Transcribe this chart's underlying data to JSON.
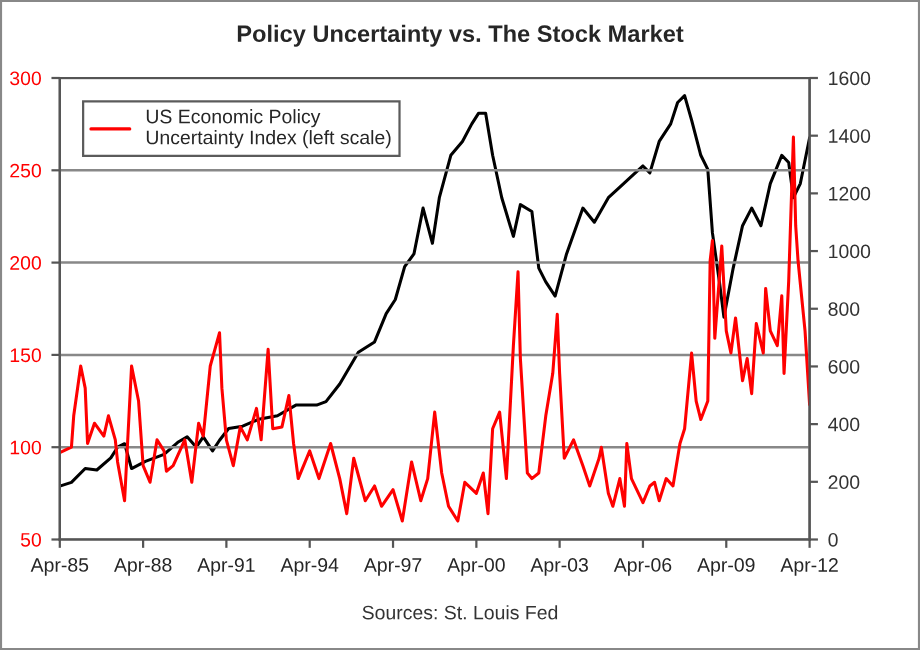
{
  "chart_data": {
    "type": "line",
    "title": "Policy Uncertainty vs. The Stock Market",
    "annotations": [
      "Sources: St. Louis Fed"
    ],
    "xlim": [
      "1985-04",
      "2012-04"
    ],
    "xticks": [
      {
        "value": "1985-04",
        "label": "Apr-85"
      },
      {
        "value": "1988-04",
        "label": "Apr-88"
      },
      {
        "value": "1991-04",
        "label": "Apr-91"
      },
      {
        "value": "1994-04",
        "label": "Apr-94"
      },
      {
        "value": "1997-04",
        "label": "Apr-97"
      },
      {
        "value": "2000-04",
        "label": "Apr-00"
      },
      {
        "value": "2003-04",
        "label": "Apr-03"
      },
      {
        "value": "2006-04",
        "label": "Apr-06"
      },
      {
        "value": "2009-04",
        "label": "Apr-09"
      },
      {
        "value": "2012-04",
        "label": "Apr-12"
      }
    ],
    "ylim": [
      50,
      300
    ],
    "yticks": [
      50,
      100,
      150,
      200,
      250,
      300
    ],
    "y2lim": [
      0,
      1600
    ],
    "y2ticks": [
      0,
      200,
      400,
      600,
      800,
      1000,
      1200,
      1400,
      1600
    ],
    "grid": "y",
    "legend": "top left",
    "marker": "none",
    "line_style": "solid",
    "series": [
      {
        "name": "US Economic Policy\nUncertainty Index (left scale)",
        "color": "#ff0000",
        "x": [
          "1985-04",
          "1985-09",
          "1985-10",
          "1986-01",
          "1986-03",
          "1986-04",
          "1986-07",
          "1986-11",
          "1987-01",
          "1987-04",
          "1987-05",
          "1987-08",
          "1987-11",
          "1988-02",
          "1988-04",
          "1988-07",
          "1988-10",
          "1989-01",
          "1989-02",
          "1989-05",
          "1989-10",
          "1990-01",
          "1990-04",
          "1990-06",
          "1990-09",
          "1990-11",
          "1991-01",
          "1991-02",
          "1991-04",
          "1991-07",
          "1991-10",
          "1992-01",
          "1992-05",
          "1992-07",
          "1992-10",
          "1992-12",
          "1993-04",
          "1993-07",
          "1993-09",
          "1993-11",
          "1994-04",
          "1994-08",
          "1995-01",
          "1995-05",
          "1995-08",
          "1995-11",
          "1996-04",
          "1996-08",
          "1996-11",
          "1997-04",
          "1997-08",
          "1997-12",
          "1998-04",
          "1998-07",
          "1998-10",
          "1999-01",
          "1999-04",
          "1999-08",
          "1999-11",
          "2000-04",
          "2000-07",
          "2000-09",
          "2000-11",
          "2001-02",
          "2001-05",
          "2001-08",
          "2001-10",
          "2001-11",
          "2002-02",
          "2002-04",
          "2002-07",
          "2002-10",
          "2003-01",
          "2003-03",
          "2003-04",
          "2003-06",
          "2003-10",
          "2004-02",
          "2004-05",
          "2004-09",
          "2004-10",
          "2005-01",
          "2005-03",
          "2005-06",
          "2005-08",
          "2005-09",
          "2005-11",
          "2006-04",
          "2006-07",
          "2006-09",
          "2006-11",
          "2007-02",
          "2007-05",
          "2007-08",
          "2007-10",
          "2008-01",
          "2008-03",
          "2008-05",
          "2008-08",
          "2008-09",
          "2008-10",
          "2008-11",
          "2009-02",
          "2009-04",
          "2009-06",
          "2009-08",
          "2009-11",
          "2010-01",
          "2010-03",
          "2010-05",
          "2010-08",
          "2010-09",
          "2010-11",
          "2011-02",
          "2011-04",
          "2011-05",
          "2011-07",
          "2011-09",
          "2011-10",
          "2011-11",
          "2012-02",
          "2012-04"
        ],
        "values": [
          97,
          100,
          117,
          144,
          132,
          102,
          113,
          106,
          117,
          104,
          92,
          71,
          144,
          125,
          90,
          81,
          104,
          98,
          87,
          90,
          104,
          81,
          113,
          106,
          144,
          153,
          162,
          132,
          104,
          90,
          111,
          104,
          121,
          104,
          153,
          110,
          111,
          128,
          102,
          83,
          98,
          83,
          102,
          83,
          64,
          94,
          71,
          79,
          68,
          77,
          60,
          92,
          71,
          83,
          119,
          86,
          68,
          60,
          81,
          75,
          86,
          64,
          110,
          119,
          83,
          155,
          195,
          148,
          86,
          83,
          86,
          117,
          140,
          172,
          140,
          94,
          104,
          90,
          79,
          94,
          100,
          75,
          68,
          83,
          68,
          102,
          83,
          70,
          79,
          81,
          71,
          83,
          79,
          102,
          110,
          151,
          125,
          115,
          125,
          201,
          212,
          159,
          209,
          163,
          151,
          170,
          136,
          148,
          129,
          167,
          151,
          186,
          163,
          155,
          182,
          140,
          190,
          268,
          220,
          201,
          163,
          123
        ]
      },
      {
        "color": "#000000",
        "axis": "y2",
        "x": [
          "1985-04",
          "1985-09",
          "1986-03",
          "1986-08",
          "1987-02",
          "1987-05",
          "1987-08",
          "1987-11",
          "1988-05",
          "1989-01",
          "1989-07",
          "1989-11",
          "1990-03",
          "1990-06",
          "1990-10",
          "1991-01",
          "1991-05",
          "1991-11",
          "1992-06",
          "1993-02",
          "1993-10",
          "1994-07",
          "1994-11",
          "1995-05",
          "1996-01",
          "1996-08",
          "1997-01",
          "1997-05",
          "1997-09",
          "1998-01",
          "1998-05",
          "1998-09",
          "1998-12",
          "1999-05",
          "1999-10",
          "2000-02",
          "2000-05",
          "2000-08",
          "2000-11",
          "2001-03",
          "2001-08",
          "2001-11",
          "2002-04",
          "2002-07",
          "2002-10",
          "2003-02",
          "2003-07",
          "2004-02",
          "2004-07",
          "2005-01",
          "2005-06",
          "2005-11",
          "2006-04",
          "2006-07",
          "2006-11",
          "2007-04",
          "2007-07",
          "2007-10",
          "2008-01",
          "2008-05",
          "2008-08",
          "2008-10",
          "2009-01",
          "2009-03",
          "2009-07",
          "2009-11",
          "2010-03",
          "2010-07",
          "2010-11",
          "2011-04",
          "2011-07",
          "2011-09",
          "2011-12",
          "2012-04"
        ],
        "values": [
          185,
          198,
          246,
          241,
          283,
          320,
          332,
          246,
          271,
          295,
          337,
          356,
          320,
          356,
          307,
          344,
          385,
          393,
          417,
          429,
          466,
          466,
          478,
          539,
          649,
          685,
          783,
          832,
          946,
          990,
          1149,
          1027,
          1185,
          1332,
          1380,
          1441,
          1478,
          1478,
          1332,
          1185,
          1051,
          1161,
          1137,
          941,
          893,
          844,
          990,
          1149,
          1100,
          1185,
          1222,
          1259,
          1295,
          1271,
          1380,
          1441,
          1515,
          1539,
          1454,
          1332,
          1283,
          1063,
          893,
          771,
          941,
          1088,
          1149,
          1088,
          1234,
          1332,
          1307,
          1185,
          1234,
          1393
        ]
      }
    ]
  }
}
